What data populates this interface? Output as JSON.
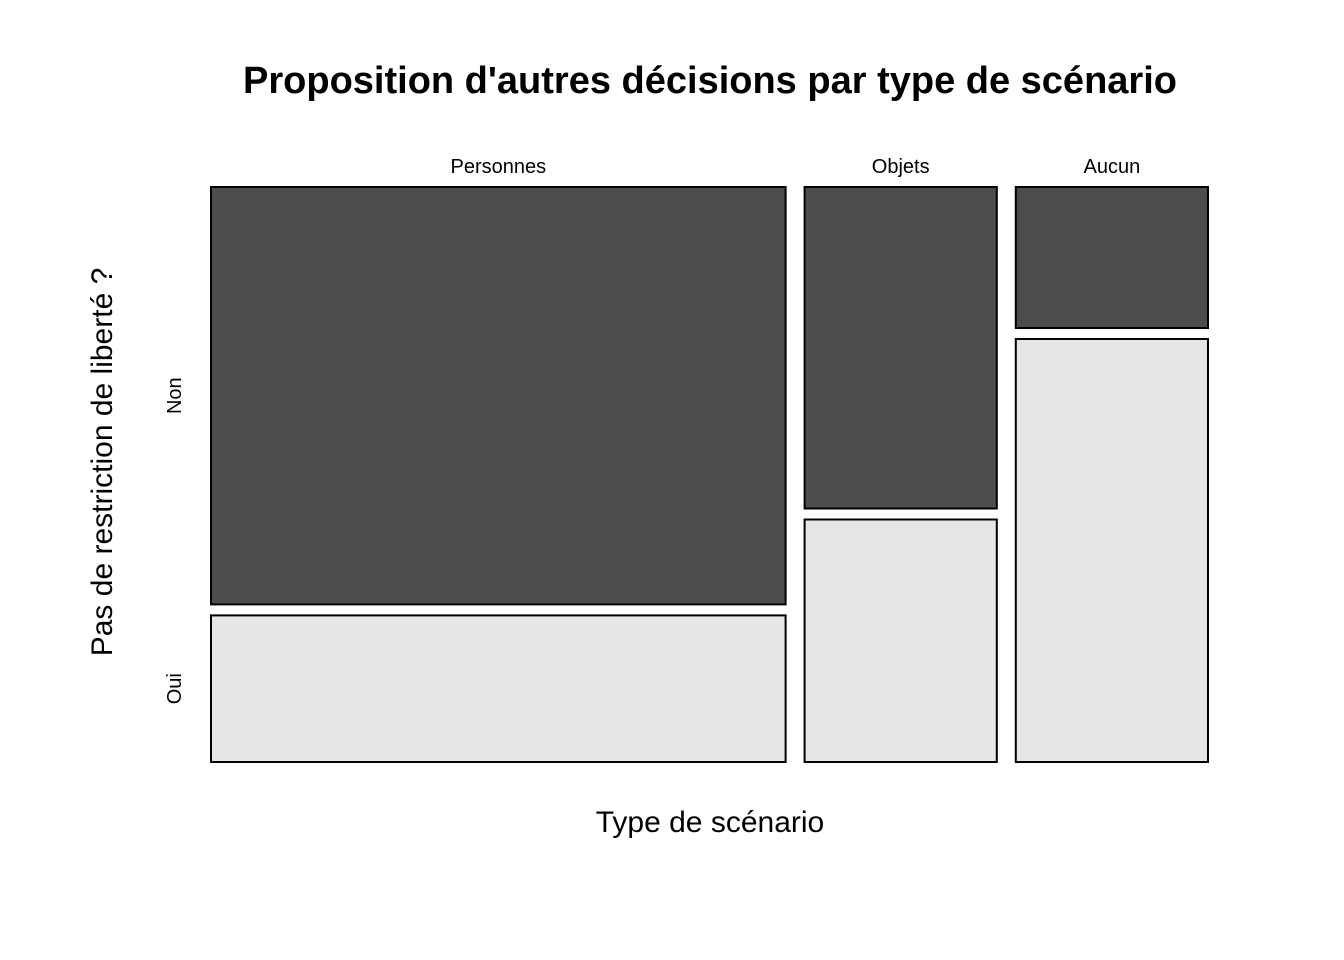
{
  "chart_data": {
    "type": "mosaic",
    "title": "Proposition d'autres décisions par type de scénario",
    "xlabel": "Type de scénario",
    "ylabel": "Pas de restriction de liberté ?",
    "categories": [
      "Personnes",
      "Objets",
      "Aucun"
    ],
    "category_shares": [
      0.577,
      0.193,
      0.193
    ],
    "series": [
      {
        "name": "Non",
        "proportions": [
          0.74,
          0.57,
          0.25
        ]
      },
      {
        "name": "Oui",
        "proportions": [
          0.26,
          0.43,
          0.75
        ]
      }
    ],
    "colors": {
      "Non": "#4d4d4d",
      "Oui": "#e6e6e6"
    },
    "legend": "none",
    "grid": false
  }
}
